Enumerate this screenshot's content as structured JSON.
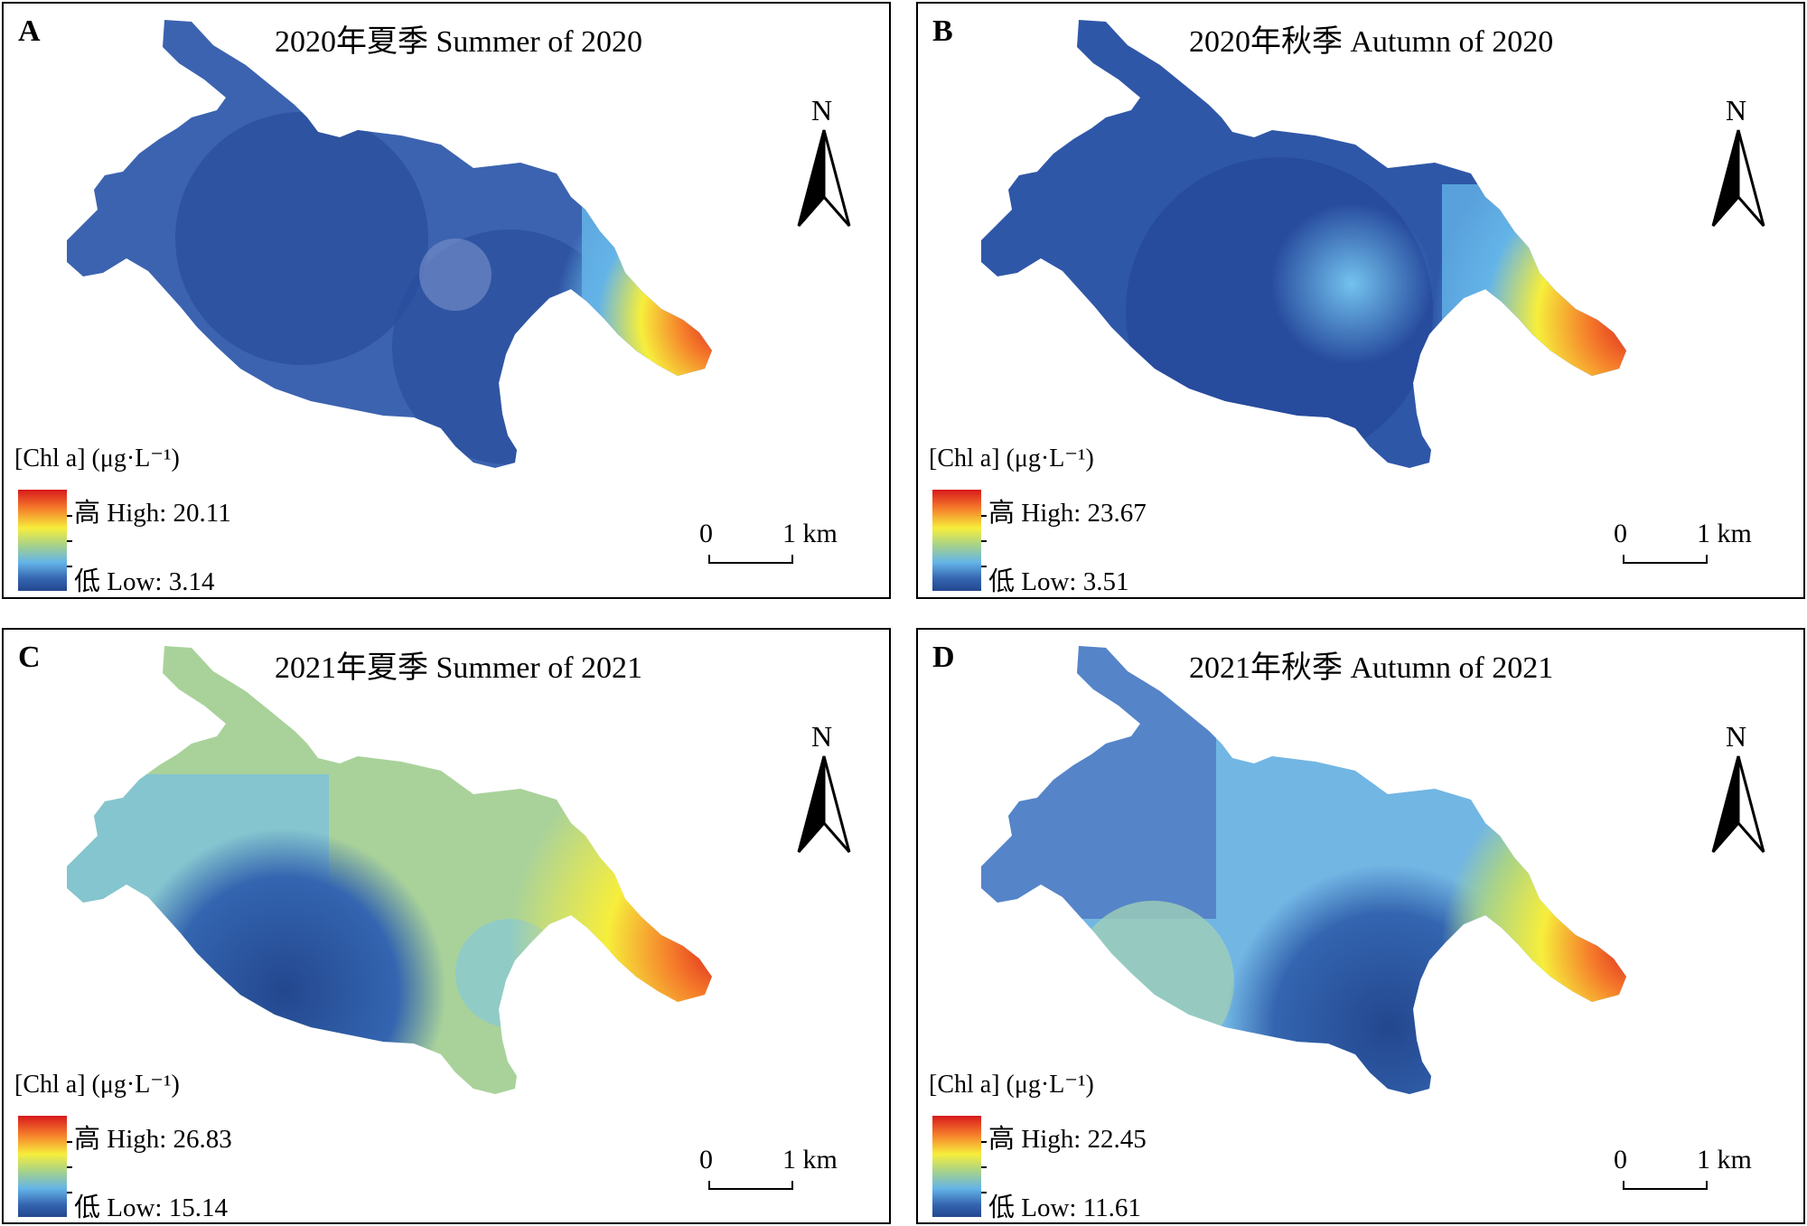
{
  "figure": {
    "legend_title": "[Chl a] (μg·L⁻¹)",
    "north_label": "N",
    "scale_zero": "0",
    "scale_km": "1 km",
    "ramp_colors": [
      "#d7191c",
      "#f57a2a",
      "#f7ee3c",
      "#a6d28a",
      "#64b4e8",
      "#3465b0",
      "#23478f"
    ]
  },
  "panels": [
    {
      "letter": "A",
      "title": "2020年夏季 Summer of 2020",
      "high": "高 High: 20.11",
      "low": "低 Low: 3.14"
    },
    {
      "letter": "B",
      "title": "2020年秋季 Autumn of 2020",
      "high": "高 High: 23.67",
      "low": "低 Low: 3.51"
    },
    {
      "letter": "C",
      "title": "2021年夏季 Summer of 2021",
      "high": "高 High: 26.83",
      "low": "低 Low: 15.14"
    },
    {
      "letter": "D",
      "title": "2021年秋季 Autumn of 2021",
      "high": "高 High: 22.45",
      "low": "低 Low: 11.61"
    }
  ]
}
